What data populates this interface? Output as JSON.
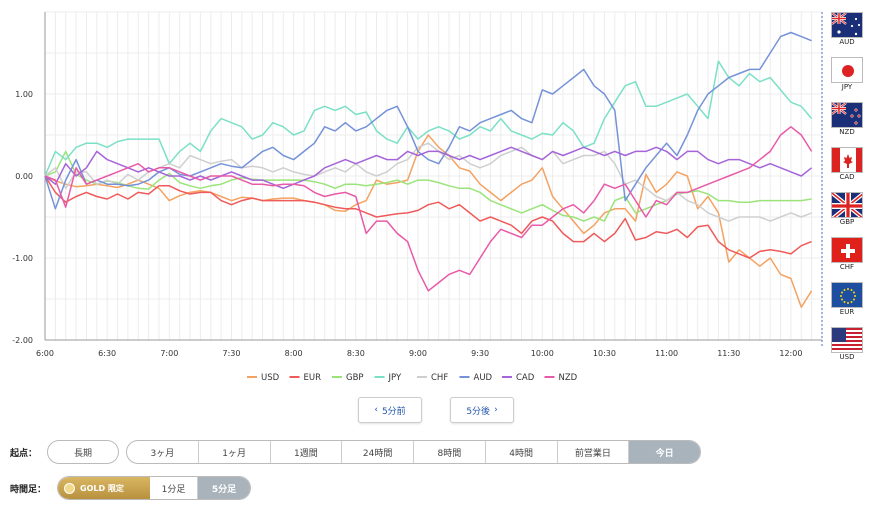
{
  "chart_data": {
    "type": "line",
    "title": "",
    "xlabel": "",
    "ylabel": "",
    "ylim": [
      -2.0,
      2.0
    ],
    "xlim": [
      0,
      75
    ],
    "y_ticks": [
      {
        "value": 1.0,
        "label": "1.00"
      },
      {
        "value": 0.0,
        "label": "0.00"
      },
      {
        "value": -1.0,
        "label": "-1.00"
      },
      {
        "value": -2.0,
        "label": "-2.00"
      }
    ],
    "x_ticks": [
      {
        "value": 0,
        "label": "6:00"
      },
      {
        "value": 6,
        "label": "6:30"
      },
      {
        "value": 12,
        "label": "7:00"
      },
      {
        "value": 18,
        "label": "7:30"
      },
      {
        "value": 24,
        "label": "8:00"
      },
      {
        "value": 30,
        "label": "8:30"
      },
      {
        "value": 36,
        "label": "9:00"
      },
      {
        "value": 42,
        "label": "9:30"
      },
      {
        "value": 48,
        "label": "10:00"
      },
      {
        "value": 54,
        "label": "10:30"
      },
      {
        "value": 60,
        "label": "11:00"
      },
      {
        "value": 66,
        "label": "11:30"
      },
      {
        "value": 72,
        "label": "12:00"
      }
    ],
    "x_note": "one point per 5 minutes starting 6:00",
    "grid": true,
    "series": [
      {
        "name": "USD",
        "color": "#f4a261",
        "values": [
          0.0,
          -0.06,
          -0.1,
          -0.13,
          -0.12,
          -0.1,
          -0.12,
          -0.14,
          -0.1,
          -0.05,
          -0.1,
          -0.15,
          -0.3,
          -0.24,
          -0.2,
          -0.18,
          -0.2,
          -0.25,
          -0.3,
          -0.26,
          -0.27,
          -0.3,
          -0.28,
          -0.27,
          -0.27,
          -0.3,
          -0.32,
          -0.35,
          -0.42,
          -0.43,
          -0.35,
          -0.3,
          -0.05,
          -0.1,
          -0.08,
          -0.05,
          0.3,
          0.5,
          0.35,
          0.25,
          0.1,
          0.06,
          -0.1,
          -0.2,
          -0.3,
          -0.2,
          -0.1,
          -0.05,
          0.1,
          -0.25,
          -0.4,
          -0.55,
          -0.7,
          -0.6,
          -0.45,
          -0.4,
          -0.4,
          -0.55,
          0.02,
          -0.2,
          -0.1,
          0.05,
          0.0,
          -0.4,
          -0.25,
          -0.45,
          -1.05,
          -0.9,
          -1.0,
          -1.1,
          -1.0,
          -1.2,
          -1.25,
          -1.6,
          -1.4
        ]
      },
      {
        "name": "EUR",
        "color": "#ef5a5a",
        "values": [
          0.0,
          -0.2,
          -0.32,
          -0.25,
          -0.2,
          -0.25,
          -0.28,
          -0.22,
          -0.28,
          -0.2,
          -0.22,
          -0.12,
          -0.12,
          -0.18,
          -0.22,
          -0.2,
          -0.2,
          -0.3,
          -0.35,
          -0.3,
          -0.27,
          -0.3,
          -0.3,
          -0.3,
          -0.3,
          -0.3,
          -0.32,
          -0.35,
          -0.38,
          -0.4,
          -0.4,
          -0.45,
          -0.5,
          -0.48,
          -0.46,
          -0.45,
          -0.42,
          -0.35,
          -0.32,
          -0.4,
          -0.35,
          -0.45,
          -0.55,
          -0.5,
          -0.55,
          -0.6,
          -0.7,
          -0.55,
          -0.5,
          -0.55,
          -0.7,
          -0.8,
          -0.8,
          -0.7,
          -0.8,
          -0.7,
          -0.52,
          -0.78,
          -0.75,
          -0.68,
          -0.7,
          -0.65,
          -0.75,
          -0.62,
          -0.6,
          -0.8,
          -0.9,
          -0.95,
          -1.0,
          -0.92,
          -0.9,
          -0.92,
          -0.95,
          -0.85,
          -0.8
        ]
      },
      {
        "name": "GBP",
        "color": "#9be47a",
        "values": [
          0.0,
          0.05,
          0.3,
          0.02,
          -0.05,
          -0.1,
          -0.06,
          -0.08,
          -0.12,
          -0.15,
          -0.16,
          -0.05,
          0.03,
          -0.08,
          -0.12,
          -0.15,
          -0.12,
          -0.1,
          -0.05,
          -0.02,
          -0.04,
          -0.05,
          -0.05,
          -0.05,
          -0.05,
          -0.05,
          -0.07,
          -0.1,
          -0.15,
          -0.1,
          -0.1,
          -0.12,
          -0.1,
          -0.08,
          -0.05,
          -0.1,
          -0.05,
          -0.05,
          -0.08,
          -0.12,
          -0.15,
          -0.15,
          -0.2,
          -0.3,
          -0.35,
          -0.4,
          -0.45,
          -0.4,
          -0.35,
          -0.42,
          -0.48,
          -0.5,
          -0.55,
          -0.5,
          -0.55,
          -0.3,
          -0.25,
          -0.45,
          -0.4,
          -0.35,
          -0.3,
          -0.22,
          -0.2,
          -0.18,
          -0.22,
          -0.3,
          -0.3,
          -0.32,
          -0.32,
          -0.3,
          -0.3,
          -0.3,
          -0.3,
          -0.3,
          -0.28
        ]
      },
      {
        "name": "JPY",
        "color": "#7be0c6",
        "values": [
          0.0,
          0.3,
          0.2,
          0.35,
          0.4,
          0.4,
          0.35,
          0.42,
          0.45,
          0.45,
          0.45,
          0.45,
          0.15,
          0.3,
          0.4,
          0.3,
          0.55,
          0.7,
          0.65,
          0.6,
          0.45,
          0.5,
          0.65,
          0.6,
          0.5,
          0.55,
          0.8,
          0.85,
          0.8,
          0.85,
          0.75,
          0.78,
          0.55,
          0.45,
          0.4,
          0.6,
          0.45,
          0.55,
          0.6,
          0.55,
          0.45,
          0.5,
          0.6,
          0.55,
          0.7,
          0.55,
          0.5,
          0.45,
          0.52,
          0.5,
          0.65,
          0.55,
          0.35,
          0.4,
          0.7,
          0.9,
          1.1,
          1.15,
          0.85,
          0.85,
          0.9,
          0.95,
          1.0,
          0.85,
          0.7,
          1.4,
          1.2,
          1.1,
          1.25,
          1.15,
          1.2,
          1.05,
          0.9,
          0.85,
          0.7
        ]
      },
      {
        "name": "CHF",
        "color": "#cfcfcf",
        "values": [
          0.0,
          0.1,
          -0.15,
          0.05,
          0.05,
          -0.1,
          -0.05,
          -0.1,
          0.02,
          -0.05,
          0.05,
          0.1,
          0.15,
          0.1,
          0.25,
          0.2,
          0.15,
          0.18,
          0.2,
          0.1,
          0.12,
          0.1,
          0.05,
          0.1,
          0.05,
          0.02,
          0.0,
          0.05,
          0.1,
          0.05,
          0.15,
          0.05,
          0.0,
          0.05,
          0.15,
          0.2,
          0.35,
          0.4,
          0.3,
          0.2,
          0.25,
          0.15,
          0.1,
          0.15,
          0.25,
          0.3,
          0.35,
          0.25,
          0.2,
          0.3,
          0.15,
          0.2,
          0.25,
          0.25,
          0.3,
          0.15,
          -0.1,
          -0.05,
          -0.15,
          -0.25,
          -0.3,
          -0.2,
          -0.3,
          -0.35,
          -0.45,
          -0.5,
          -0.55,
          -0.5,
          -0.5,
          -0.5,
          -0.55,
          -0.5,
          -0.45,
          -0.5,
          -0.45
        ]
      },
      {
        "name": "AUD",
        "color": "#7592d9",
        "values": [
          0.0,
          -0.4,
          -0.05,
          0.2,
          -0.1,
          -0.05,
          -0.1,
          -0.1,
          -0.12,
          -0.1,
          -0.05,
          0.05,
          0.1,
          0.02,
          0.0,
          0.05,
          0.1,
          0.15,
          0.12,
          0.1,
          0.2,
          0.3,
          0.35,
          0.25,
          0.2,
          0.3,
          0.4,
          0.6,
          0.55,
          0.65,
          0.55,
          0.6,
          0.7,
          0.8,
          0.85,
          0.6,
          0.3,
          0.2,
          0.15,
          0.35,
          0.6,
          0.55,
          0.65,
          0.7,
          0.75,
          0.8,
          0.7,
          0.65,
          1.05,
          1.0,
          1.1,
          1.2,
          1.3,
          1.1,
          1.0,
          0.8,
          -0.3,
          -0.1,
          0.1,
          0.25,
          0.4,
          0.25,
          0.5,
          0.8,
          1.0,
          1.1,
          1.2,
          1.25,
          1.3,
          1.3,
          1.5,
          1.7,
          1.75,
          1.7,
          1.65
        ]
      },
      {
        "name": "CAD",
        "color": "#a564d9",
        "values": [
          0.0,
          -0.1,
          0.15,
          0.0,
          0.1,
          0.3,
          0.2,
          0.15,
          0.1,
          0.05,
          0.1,
          0.05,
          0.0,
          0.0,
          -0.05,
          0.0,
          -0.05,
          0.0,
          0.05,
          0.0,
          -0.05,
          -0.05,
          -0.1,
          -0.15,
          -0.1,
          -0.05,
          0.0,
          0.1,
          0.15,
          0.2,
          0.15,
          0.2,
          0.25,
          0.2,
          0.2,
          0.3,
          0.25,
          0.3,
          0.3,
          0.25,
          0.2,
          0.25,
          0.2,
          0.25,
          0.3,
          0.35,
          0.3,
          0.25,
          0.2,
          0.3,
          0.25,
          0.3,
          0.35,
          0.3,
          0.25,
          0.3,
          0.25,
          0.3,
          0.3,
          0.35,
          0.3,
          0.2,
          0.3,
          0.3,
          0.2,
          0.15,
          0.2,
          0.2,
          0.15,
          0.1,
          0.15,
          0.1,
          0.05,
          0.0,
          0.1
        ]
      },
      {
        "name": "NZD",
        "color": "#e85aa8",
        "values": [
          0.0,
          -0.05,
          -0.38,
          0.1,
          -0.1,
          -0.05,
          0.0,
          0.05,
          0.1,
          0.15,
          0.05,
          0.1,
          0.1,
          0.05,
          0.0,
          -0.05,
          0.0,
          0.0,
          0.0,
          -0.05,
          -0.1,
          -0.1,
          -0.12,
          -0.1,
          -0.1,
          -0.12,
          -0.2,
          -0.25,
          -0.22,
          -0.2,
          -0.25,
          -0.7,
          -0.55,
          -0.55,
          -0.7,
          -0.8,
          -1.15,
          -1.4,
          -1.3,
          -1.2,
          -1.15,
          -1.2,
          -1.0,
          -0.8,
          -0.65,
          -0.7,
          -0.75,
          -0.6,
          -0.6,
          -0.5,
          -0.4,
          -0.35,
          -0.45,
          -0.3,
          -0.1,
          -0.15,
          -0.1,
          -0.3,
          -0.5,
          -0.3,
          -0.35,
          -0.2,
          -0.2,
          -0.15,
          -0.1,
          -0.05,
          0.0,
          0.05,
          0.1,
          0.2,
          0.3,
          0.5,
          0.6,
          0.5,
          0.3
        ]
      }
    ]
  },
  "flags": [
    {
      "code": "AUD"
    },
    {
      "code": "JPY"
    },
    {
      "code": "NZD"
    },
    {
      "code": "CAD"
    },
    {
      "code": "GBP"
    },
    {
      "code": "CHF"
    },
    {
      "code": "EUR"
    },
    {
      "code": "USD"
    }
  ],
  "nav": {
    "prev_label": "5分前",
    "next_label": "5分後"
  },
  "origin": {
    "label": "起点：",
    "long_term": "長期",
    "options": [
      "3ヶ月",
      "1ヶ月",
      "1週間",
      "24時間",
      "8時間",
      "4時間",
      "前営業日",
      "今日"
    ],
    "selected": "今日"
  },
  "timeframe": {
    "label": "時間足：",
    "gold_label": "GOLD 限定",
    "options": [
      "1分足",
      "5分足"
    ],
    "selected": "5分足"
  }
}
